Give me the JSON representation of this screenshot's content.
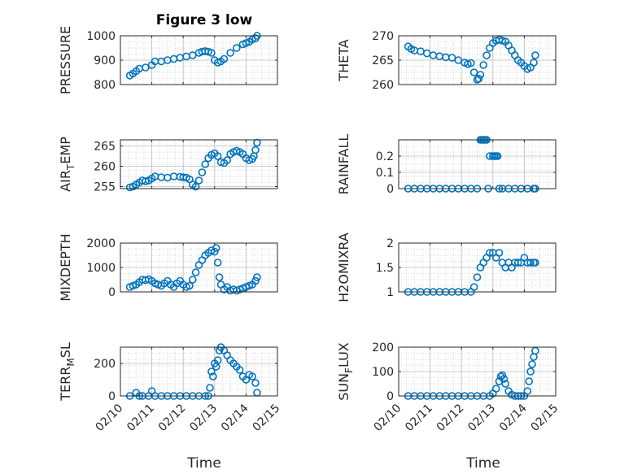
{
  "chart_data": {
    "type": "scatter",
    "title": "Figure 3 low",
    "xlabel": "Time",
    "x_ticks": [
      "02/10",
      "02/11",
      "02/12",
      "02/13",
      "02/14",
      "02/15"
    ],
    "xlim": [
      0,
      5
    ],
    "x_unit": "days after 02/10",
    "grid": true,
    "marker": "circle",
    "marker_color": "#0072bd",
    "panels": [
      {
        "id": "pressure",
        "ylabel": "PRESSURE",
        "ylim": [
          800,
          1000
        ],
        "yticks": [
          "800",
          "900",
          "1000"
        ],
        "ytick_values": [
          800,
          900,
          1000
        ],
        "x": [
          0.3,
          0.4,
          0.5,
          0.6,
          0.8,
          1.0,
          1.1,
          1.3,
          1.5,
          1.7,
          1.9,
          2.1,
          2.3,
          2.5,
          2.6,
          2.7,
          2.8,
          2.9,
          3.0,
          3.1,
          3.2,
          3.3,
          3.5,
          3.7,
          3.9,
          4.0,
          4.1,
          4.2,
          4.3,
          4.35
        ],
        "y": [
          837,
          845,
          855,
          865,
          870,
          880,
          895,
          895,
          900,
          905,
          910,
          915,
          920,
          930,
          935,
          937,
          935,
          930,
          900,
          890,
          895,
          905,
          930,
          950,
          965,
          970,
          975,
          985,
          990,
          1000
        ]
      },
      {
        "id": "theta",
        "ylabel": "THETA",
        "ylim": [
          260,
          270
        ],
        "yticks": [
          "260",
          "265",
          "270"
        ],
        "ytick_values": [
          260,
          265,
          270
        ],
        "x": [
          0.3,
          0.4,
          0.5,
          0.7,
          0.9,
          1.1,
          1.3,
          1.5,
          1.7,
          1.9,
          2.1,
          2.2,
          2.3,
          2.4,
          2.5,
          2.55,
          2.6,
          2.7,
          2.8,
          2.9,
          3.0,
          3.1,
          3.2,
          3.3,
          3.4,
          3.5,
          3.6,
          3.7,
          3.8,
          3.9,
          4.0,
          4.1,
          4.2,
          4.3,
          4.35
        ],
        "y": [
          267.8,
          267.3,
          267.0,
          266.8,
          266.4,
          266.0,
          265.8,
          265.6,
          265.5,
          265.0,
          264.5,
          264.2,
          264.4,
          262.5,
          261.0,
          261.2,
          262.0,
          264.0,
          266.0,
          267.5,
          268.5,
          269.0,
          269.2,
          269.0,
          268.8,
          268.0,
          267.0,
          266.0,
          265.0,
          264.5,
          263.8,
          263.2,
          263.5,
          264.5,
          266.0
        ]
      },
      {
        "id": "air-temp",
        "ylabel": "AIR",
        "ylabel_sub": "T",
        "ylabel_suffix": "EMP",
        "ylim": [
          254.5,
          266.5
        ],
        "yticks": [
          "255",
          "260",
          "265"
        ],
        "ytick_values": [
          255,
          260,
          265
        ],
        "x": [
          0.3,
          0.4,
          0.5,
          0.6,
          0.7,
          0.8,
          0.9,
          1.0,
          1.1,
          1.3,
          1.5,
          1.7,
          1.9,
          2.0,
          2.1,
          2.2,
          2.3,
          2.4,
          2.5,
          2.6,
          2.7,
          2.8,
          2.9,
          3.0,
          3.1,
          3.2,
          3.3,
          3.4,
          3.5,
          3.6,
          3.7,
          3.8,
          3.9,
          4.0,
          4.1,
          4.2,
          4.25,
          4.3,
          4.35
        ],
        "y": [
          254.8,
          255.0,
          255.5,
          256.0,
          256.5,
          256.3,
          256.5,
          257.0,
          257.5,
          257.3,
          257.2,
          257.5,
          257.4,
          257.3,
          257.2,
          256.8,
          255.5,
          255.0,
          256.5,
          258.5,
          260.5,
          262.0,
          262.8,
          263.2,
          262.5,
          261.0,
          260.8,
          261.5,
          263.0,
          263.5,
          263.8,
          263.5,
          263.0,
          262.0,
          261.5,
          261.8,
          262.5,
          264.0,
          265.8
        ]
      },
      {
        "id": "rainfall",
        "ylabel": "RAINFALL",
        "ylim": [
          0,
          0.3
        ],
        "yticks": [
          "0",
          "0.1",
          "0.2"
        ],
        "ytick_values": [
          0,
          0.1,
          0.2
        ],
        "x": [
          0.3,
          0.5,
          0.7,
          0.9,
          1.1,
          1.3,
          1.5,
          1.7,
          1.9,
          2.1,
          2.3,
          2.5,
          2.6,
          2.65,
          2.7,
          2.75,
          2.8,
          2.85,
          2.9,
          3.0,
          3.05,
          3.1,
          3.15,
          3.2,
          3.3,
          3.5,
          3.7,
          3.9,
          4.1,
          4.3,
          4.35
        ],
        "y": [
          0,
          0,
          0,
          0,
          0,
          0,
          0,
          0,
          0,
          0,
          0,
          0,
          0.3,
          0.3,
          0.3,
          0.3,
          0.3,
          0,
          0.2,
          0.2,
          0.2,
          0.2,
          0.2,
          0,
          0,
          0,
          0,
          0,
          0,
          0,
          0
        ]
      },
      {
        "id": "mixdepth",
        "ylabel": "MIXDEPTH",
        "ylim": [
          0,
          2000
        ],
        "yticks": [
          "0",
          "1000",
          "2000"
        ],
        "ytick_values": [
          0,
          1000,
          2000
        ],
        "x": [
          0.3,
          0.4,
          0.5,
          0.6,
          0.7,
          0.8,
          0.9,
          1.0,
          1.1,
          1.2,
          1.3,
          1.4,
          1.5,
          1.6,
          1.7,
          1.8,
          1.9,
          2.0,
          2.1,
          2.2,
          2.3,
          2.4,
          2.5,
          2.6,
          2.7,
          2.8,
          2.9,
          3.0,
          3.05,
          3.1,
          3.15,
          3.2,
          3.3,
          3.4,
          3.5,
          3.6,
          3.7,
          3.8,
          3.9,
          4.0,
          4.1,
          4.2,
          4.3,
          4.35
        ],
        "y": [
          200,
          250,
          300,
          400,
          500,
          480,
          520,
          450,
          350,
          300,
          250,
          350,
          450,
          300,
          200,
          350,
          450,
          300,
          200,
          250,
          500,
          800,
          1100,
          1300,
          1500,
          1600,
          1700,
          1650,
          1800,
          1200,
          600,
          300,
          100,
          200,
          50,
          100,
          50,
          100,
          150,
          200,
          250,
          300,
          450,
          600
        ]
      },
      {
        "id": "h2omixra",
        "ylabel": "H2OMIXRA",
        "ylim": [
          1,
          2
        ],
        "yticks": [
          "1",
          "1.5",
          "2"
        ],
        "ytick_values": [
          1,
          1.5,
          2
        ],
        "x": [
          0.3,
          0.5,
          0.7,
          0.9,
          1.1,
          1.3,
          1.5,
          1.7,
          1.9,
          2.1,
          2.3,
          2.4,
          2.5,
          2.6,
          2.7,
          2.8,
          2.9,
          3.0,
          3.1,
          3.2,
          3.3,
          3.4,
          3.5,
          3.6,
          3.7,
          3.8,
          3.9,
          4.0,
          4.1,
          4.2,
          4.3,
          4.35
        ],
        "y": [
          1,
          1,
          1,
          1,
          1,
          1,
          1,
          1,
          1,
          1,
          1,
          1.1,
          1.3,
          1.5,
          1.6,
          1.7,
          1.8,
          1.8,
          1.7,
          1.8,
          1.6,
          1.5,
          1.6,
          1.5,
          1.6,
          1.6,
          1.6,
          1.7,
          1.6,
          1.6,
          1.6,
          1.6
        ]
      },
      {
        "id": "terr-msl",
        "ylabel": "TERR",
        "ylabel_sub": "M",
        "ylabel_suffix": "SL",
        "ylim": [
          0,
          300
        ],
        "yticks": [
          "0",
          "200"
        ],
        "ytick_values": [
          0,
          200
        ],
        "x": [
          0.3,
          0.5,
          0.6,
          0.7,
          0.9,
          1.0,
          1.1,
          1.3,
          1.5,
          1.7,
          1.9,
          2.1,
          2.3,
          2.5,
          2.7,
          2.8,
          2.85,
          2.9,
          2.95,
          3.0,
          3.05,
          3.1,
          3.15,
          3.2,
          3.3,
          3.4,
          3.5,
          3.6,
          3.7,
          3.8,
          3.9,
          4.0,
          4.1,
          4.2,
          4.3,
          4.35
        ],
        "y": [
          0,
          20,
          0,
          0,
          0,
          30,
          0,
          0,
          0,
          0,
          0,
          0,
          0,
          0,
          0,
          0,
          50,
          150,
          120,
          200,
          180,
          220,
          280,
          300,
          280,
          250,
          220,
          200,
          180,
          160,
          120,
          100,
          130,
          120,
          80,
          20
        ]
      },
      {
        "id": "sun-flux",
        "ylabel": "SUN",
        "ylabel_sub": "F",
        "ylabel_suffix": "LUX",
        "ylim": [
          0,
          200
        ],
        "yticks": [
          "0",
          "100",
          "200"
        ],
        "ytick_values": [
          0,
          100,
          200
        ],
        "x": [
          0.3,
          0.5,
          0.7,
          0.9,
          1.1,
          1.3,
          1.5,
          1.7,
          1.9,
          2.1,
          2.3,
          2.5,
          2.7,
          2.9,
          3.0,
          3.1,
          3.2,
          3.25,
          3.3,
          3.35,
          3.4,
          3.5,
          3.6,
          3.7,
          3.8,
          3.9,
          4.0,
          4.1,
          4.15,
          4.2,
          4.25,
          4.3,
          4.35
        ],
        "y": [
          0,
          0,
          0,
          0,
          0,
          0,
          0,
          0,
          0,
          0,
          0,
          0,
          0,
          0,
          10,
          30,
          60,
          80,
          85,
          70,
          50,
          20,
          5,
          0,
          0,
          0,
          0,
          20,
          60,
          100,
          130,
          160,
          185
        ]
      }
    ]
  }
}
